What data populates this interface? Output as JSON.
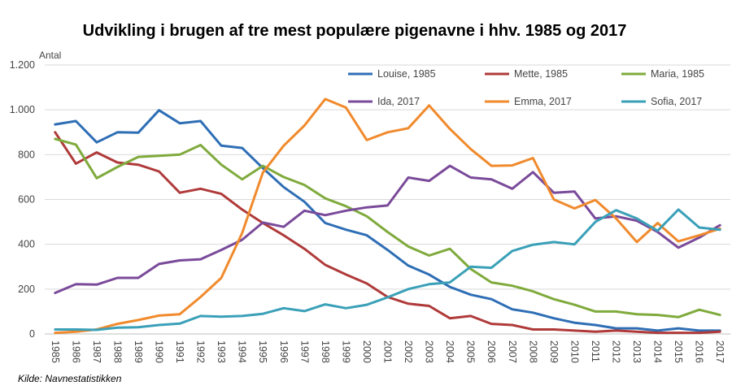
{
  "chart_data": {
    "type": "line",
    "title": "Udvikling i brugen af tre mest populære pigenavne i hhv. 1985  og 2017",
    "ylabel": "Antal",
    "xlabel": "",
    "source": "Kilde: Navnestatistikken",
    "ylim": [
      0,
      1200
    ],
    "yticks": [
      0,
      200,
      400,
      600,
      800,
      1000,
      1200
    ],
    "ytick_labels": [
      "0",
      "200",
      "400",
      "600",
      "800",
      "1.000",
      "1.200"
    ],
    "grid": true,
    "legend_position": "top-right",
    "categories": [
      "1985",
      "1986",
      "1987",
      "1988",
      "1989",
      "1990",
      "1991",
      "1992",
      "1993",
      "1994",
      "1995",
      "1996",
      "1997",
      "1998",
      "1999",
      "2000",
      "2001",
      "2002",
      "2003",
      "2004",
      "2005",
      "2006",
      "2007",
      "2008",
      "2009",
      "2010",
      "2011",
      "2012",
      "2013",
      "2014",
      "2015",
      "2016",
      "2017"
    ],
    "series": [
      {
        "name": "Louise, 1985",
        "color": "#2e6eb5",
        "values": [
          935,
          950,
          855,
          900,
          898,
          998,
          940,
          950,
          840,
          830,
          740,
          655,
          590,
          495,
          465,
          440,
          375,
          305,
          265,
          210,
          175,
          155,
          110,
          95,
          70,
          50,
          40,
          25,
          25,
          15,
          25,
          15,
          15
        ]
      },
      {
        "name": "Mette, 1985",
        "color": "#b03a3a",
        "values": [
          900,
          760,
          810,
          765,
          755,
          725,
          630,
          648,
          625,
          555,
          495,
          440,
          380,
          308,
          265,
          225,
          165,
          135,
          125,
          70,
          80,
          45,
          40,
          20,
          20,
          15,
          10,
          15,
          10,
          5,
          5,
          5,
          10
        ]
      },
      {
        "name": "Maria, 1985",
        "color": "#7faa3c",
        "values": [
          870,
          845,
          695,
          745,
          790,
          795,
          800,
          843,
          755,
          690,
          750,
          700,
          665,
          605,
          570,
          525,
          455,
          390,
          350,
          380,
          290,
          230,
          215,
          190,
          155,
          130,
          100,
          100,
          88,
          85,
          75,
          108,
          85
        ]
      },
      {
        "name": "Ida, 2017",
        "color": "#7a4a9a",
        "values": [
          183,
          222,
          220,
          250,
          250,
          312,
          328,
          333,
          375,
          420,
          497,
          478,
          550,
          530,
          550,
          565,
          573,
          698,
          683,
          750,
          698,
          690,
          648,
          722,
          630,
          635,
          515,
          525,
          505,
          455,
          385,
          430,
          485
        ]
      },
      {
        "name": "Emma, 2017",
        "color": "#f08a2c",
        "values": [
          5,
          10,
          20,
          45,
          62,
          82,
          88,
          165,
          250,
          450,
          720,
          840,
          930,
          1048,
          1010,
          865,
          900,
          918,
          1020,
          915,
          825,
          750,
          752,
          785,
          600,
          560,
          598,
          515,
          410,
          495,
          413,
          440,
          470
        ]
      },
      {
        "name": "Sofia, 2017",
        "color": "#3aa0b8",
        "values": [
          20,
          20,
          18,
          28,
          30,
          40,
          46,
          80,
          77,
          80,
          90,
          115,
          102,
          132,
          115,
          130,
          163,
          200,
          222,
          230,
          300,
          295,
          370,
          398,
          410,
          400,
          500,
          552,
          515,
          460,
          555,
          475,
          465
        ]
      }
    ]
  }
}
